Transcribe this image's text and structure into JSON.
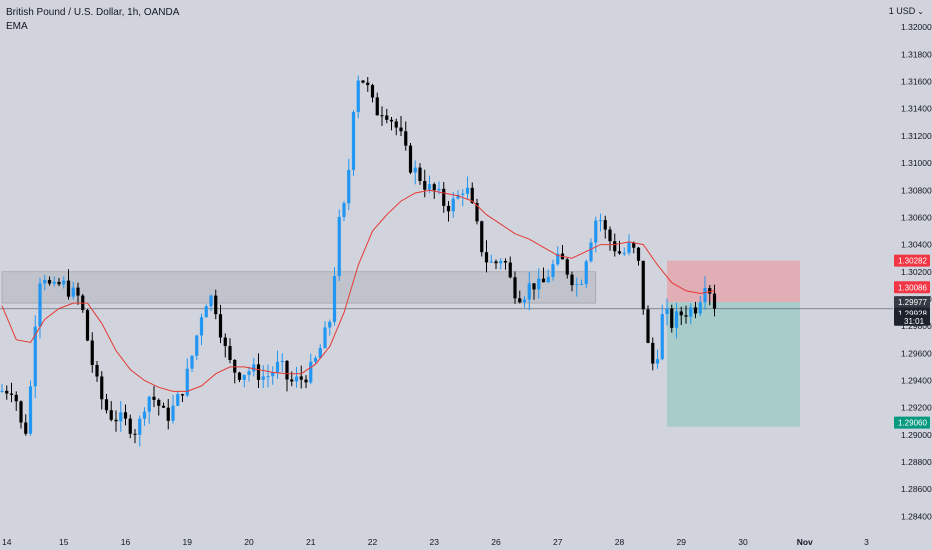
{
  "header": {
    "symbol_title": "British Pound / U.S. Dollar, 1h, OANDA",
    "indicator": "EMA",
    "currency": "1 USD",
    "currency_caret": "⌄"
  },
  "colors": {
    "background": "#d1d4dc",
    "candle_up": "#2196f3",
    "candle_down": "#000000",
    "ema": "#e53935",
    "zone_fill": "#b2b5be",
    "stop_zone": "#e6a4ab",
    "target_zone": "#9cc9c6",
    "stop_label": "#f23645",
    "target_label": "#089981",
    "entry_label": "#363a45",
    "price_label": "#131722"
  },
  "chart_data": {
    "type": "candlestick",
    "title": "British Pound / U.S. Dollar, 1h, OANDA",
    "ylim": [
      1.283,
      1.322
    ],
    "y_ticks": [
      "1.32000",
      "1.31800",
      "1.31600",
      "1.31400",
      "1.31200",
      "1.31000",
      "1.30800",
      "1.30600",
      "1.30400",
      "1.30200",
      "1.30000",
      "1.29800",
      "1.29600",
      "1.29400",
      "1.29200",
      "1.29000",
      "1.28800",
      "1.28600",
      "1.28400"
    ],
    "y_tick_values": [
      1.32,
      1.318,
      1.316,
      1.314,
      1.312,
      1.31,
      1.308,
      1.306,
      1.304,
      1.302,
      1.3,
      1.298,
      1.296,
      1.294,
      1.292,
      1.29,
      1.288,
      1.286,
      1.284
    ],
    "x_ticks": [
      "14",
      "15",
      "16",
      "19",
      "20",
      "21",
      "22",
      "23",
      "26",
      "27",
      "28",
      "29",
      "30",
      "Nov",
      "3"
    ],
    "x_tick_index": [
      0,
      13,
      26,
      39,
      52,
      65,
      78,
      91,
      104,
      117,
      130,
      143,
      156,
      169,
      182
    ],
    "price_path": [
      [
        0,
        1.2932
      ],
      [
        3,
        1.2935
      ],
      [
        5,
        1.2898
      ],
      [
        6,
        1.291
      ],
      [
        8,
        1.301
      ],
      [
        9,
        1.3022
      ],
      [
        11,
        1.3005
      ],
      [
        13,
        1.3012
      ],
      [
        15,
        1.3005
      ],
      [
        17,
        1.3
      ],
      [
        19,
        1.296
      ],
      [
        21,
        1.293
      ],
      [
        23,
        1.2915
      ],
      [
        25,
        1.2912
      ],
      [
        27,
        1.2908
      ],
      [
        29,
        1.2902
      ],
      [
        31,
        1.293
      ],
      [
        33,
        1.2925
      ],
      [
        35,
        1.2912
      ],
      [
        37,
        1.2922
      ],
      [
        39,
        1.2938
      ],
      [
        41,
        1.2965
      ],
      [
        43,
        1.2998
      ],
      [
        45,
        1.3002
      ],
      [
        46,
        1.2985
      ],
      [
        48,
        1.2955
      ],
      [
        50,
        1.2945
      ],
      [
        53,
        1.2948
      ],
      [
        56,
        1.2942
      ],
      [
        59,
        1.2952
      ],
      [
        61,
        1.2938
      ],
      [
        64,
        1.2942
      ],
      [
        66,
        1.295
      ],
      [
        68,
        1.2968
      ],
      [
        70,
        1.299
      ],
      [
        71,
        1.305
      ],
      [
        73,
        1.3072
      ],
      [
        74,
        1.312
      ],
      [
        75,
        1.3165
      ],
      [
        77,
        1.316
      ],
      [
        79,
        1.3138
      ],
      [
        81,
        1.314
      ],
      [
        83,
        1.313
      ],
      [
        85,
        1.3115
      ],
      [
        86,
        1.31
      ],
      [
        88,
        1.3092
      ],
      [
        90,
        1.3082
      ],
      [
        92,
        1.3078
      ],
      [
        94,
        1.3068
      ],
      [
        96,
        1.3072
      ],
      [
        98,
        1.3085
      ],
      [
        100,
        1.306
      ],
      [
        102,
        1.303
      ],
      [
        104,
        1.3025
      ],
      [
        106,
        1.3032
      ],
      [
        108,
        1.3008
      ],
      [
        110,
        1.3002
      ],
      [
        112,
        1.3012
      ],
      [
        114,
        1.3008
      ],
      [
        116,
        1.3022
      ],
      [
        118,
        1.303
      ],
      [
        120,
        1.3018
      ],
      [
        122,
        1.3008
      ],
      [
        124,
        1.304
      ],
      [
        126,
        1.3065
      ],
      [
        127,
        1.3052
      ],
      [
        129,
        1.304
      ],
      [
        131,
        1.3032
      ],
      [
        133,
        1.304
      ],
      [
        135,
        1.302
      ],
      [
        136,
        1.297
      ],
      [
        137,
        1.296
      ],
      [
        138,
        1.2945
      ],
      [
        139,
        1.2978
      ],
      [
        140,
        1.2995
      ],
      [
        141,
        1.298
      ],
      [
        143,
        1.2988
      ],
      [
        145,
        1.2992
      ],
      [
        147,
        1.2995
      ],
      [
        148,
        1.301
      ],
      [
        149,
        1.3018
      ],
      [
        150,
        1.2996
      ]
    ],
    "ema_path": [
      [
        0,
        1.2995
      ],
      [
        3,
        1.297
      ],
      [
        6,
        1.2968
      ],
      [
        9,
        1.2985
      ],
      [
        12,
        1.2993
      ],
      [
        15,
        1.2997
      ],
      [
        18,
        1.2997
      ],
      [
        21,
        1.2982
      ],
      [
        24,
        1.2962
      ],
      [
        27,
        1.2948
      ],
      [
        30,
        1.294
      ],
      [
        33,
        1.2935
      ],
      [
        36,
        1.2932
      ],
      [
        39,
        1.2932
      ],
      [
        42,
        1.2936
      ],
      [
        45,
        1.2945
      ],
      [
        48,
        1.295
      ],
      [
        51,
        1.295
      ],
      [
        54,
        1.2948
      ],
      [
        57,
        1.2946
      ],
      [
        60,
        1.2945
      ],
      [
        63,
        1.2945
      ],
      [
        66,
        1.2952
      ],
      [
        69,
        1.2965
      ],
      [
        72,
        1.299
      ],
      [
        75,
        1.3025
      ],
      [
        78,
        1.305
      ],
      [
        81,
        1.3062
      ],
      [
        84,
        1.3072
      ],
      [
        87,
        1.3078
      ],
      [
        90,
        1.308
      ],
      [
        93,
        1.3078
      ],
      [
        96,
        1.3076
      ],
      [
        99,
        1.3072
      ],
      [
        102,
        1.3062
      ],
      [
        105,
        1.3055
      ],
      [
        108,
        1.3048
      ],
      [
        111,
        1.3044
      ],
      [
        114,
        1.3038
      ],
      [
        117,
        1.3032
      ],
      [
        120,
        1.303
      ],
      [
        123,
        1.3035
      ],
      [
        126,
        1.304
      ],
      [
        129,
        1.304
      ],
      [
        132,
        1.3042
      ],
      [
        135,
        1.304
      ],
      [
        138,
        1.3025
      ],
      [
        141,
        1.3012
      ],
      [
        144,
        1.3006
      ],
      [
        147,
        1.3004
      ],
      [
        150,
        1.3006
      ]
    ],
    "support_zone": {
      "x_start": 0,
      "x_end": 125,
      "top": 1.302,
      "bottom": 1.2997
    },
    "horizontal_line": 1.29928,
    "position": {
      "x_start": 140,
      "x_end": 168,
      "stop": 1.30282,
      "entry": 1.29977,
      "target": 1.2906
    },
    "price_labels": {
      "stop": "1.30282",
      "ema_value": "1.30086",
      "entry": "1.29977",
      "last": "1.29928",
      "countdown": "31:01",
      "target": "1.29060"
    }
  }
}
